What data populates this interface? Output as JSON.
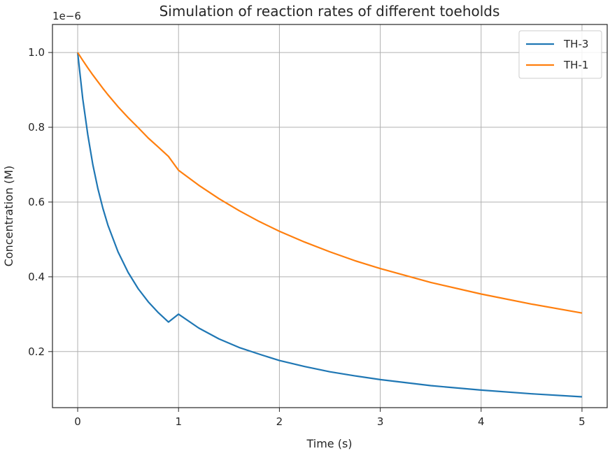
{
  "chart_data": {
    "type": "line",
    "title": "Simulation of reaction rates of different toeholds",
    "xlabel": "Time (s)",
    "ylabel": "Concentration (M)",
    "offset_text": "1e−6",
    "xlim": [
      -0.25,
      5.25
    ],
    "ylim": [
      0.05,
      1.075
    ],
    "x_ticks": [
      0,
      1,
      2,
      3,
      4,
      5
    ],
    "x_tick_labels": [
      "0",
      "1",
      "2",
      "3",
      "4",
      "5"
    ],
    "y_ticks": [
      0.2,
      0.4,
      0.6,
      0.8,
      1.0
    ],
    "y_tick_labels": [
      "0.2",
      "0.4",
      "0.6",
      "0.8",
      "1.0"
    ],
    "y_unit_scale": 1e-06,
    "grid": true,
    "legend_position": "top-right",
    "x": [
      0,
      0.05,
      0.1,
      0.15,
      0.2,
      0.25,
      0.3,
      0.4,
      0.5,
      0.6,
      0.7,
      0.8,
      0.9,
      1.0,
      1.2,
      1.4,
      1.6,
      1.8,
      2.0,
      2.25,
      2.5,
      2.75,
      3.0,
      3.5,
      4.0,
      4.5,
      5.0
    ],
    "series": [
      {
        "name": "TH-3",
        "color": "#1f77b4",
        "values": [
          1.0,
          0.876,
          0.78,
          0.7,
          0.636,
          0.583,
          0.538,
          0.467,
          0.412,
          0.368,
          0.333,
          0.304,
          0.279,
          0.3,
          0.263,
          0.234,
          0.211,
          0.193,
          0.176,
          0.16,
          0.146,
          0.135,
          0.125,
          0.109,
          0.097,
          0.087,
          0.079
        ]
      },
      {
        "name": "TH-1",
        "color": "#ff7f0e",
        "values": [
          1.0,
          0.979,
          0.959,
          0.94,
          0.922,
          0.904,
          0.887,
          0.855,
          0.826,
          0.799,
          0.771,
          0.747,
          0.722,
          0.685,
          0.645,
          0.609,
          0.577,
          0.548,
          0.522,
          0.493,
          0.467,
          0.443,
          0.422,
          0.385,
          0.354,
          0.327,
          0.303
        ]
      }
    ]
  }
}
